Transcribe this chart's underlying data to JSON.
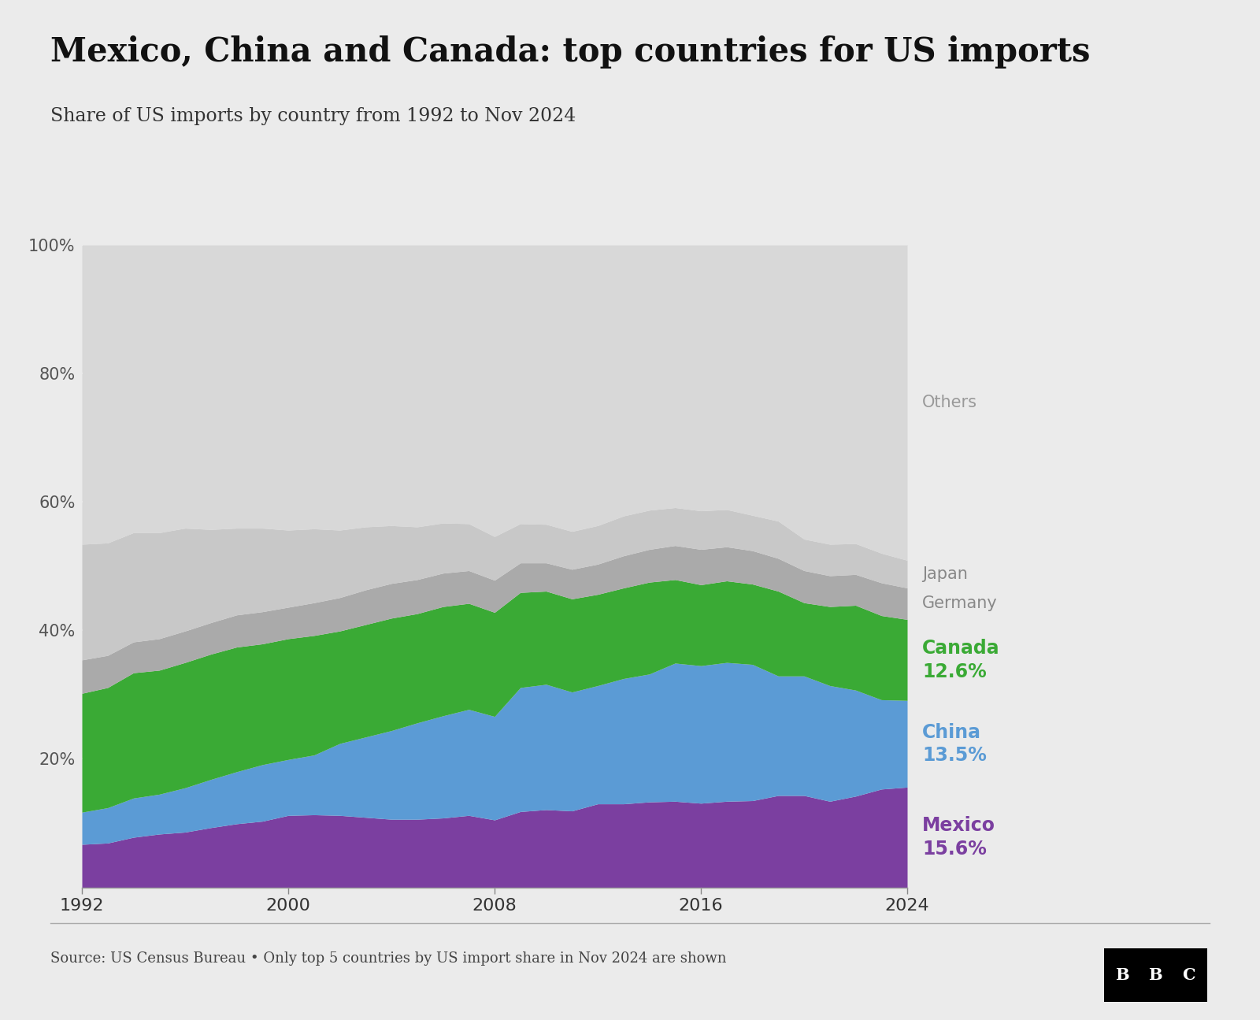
{
  "title": "Mexico, China and Canada: top countries for US imports",
  "subtitle": "Share of US imports by country from 1992 to Nov 2024",
  "source": "Source: US Census Bureau • Only top 5 countries by US import share in Nov 2024 are shown",
  "background_color": "#ebebeb",
  "plot_bg_color": "#ebebeb",
  "title_fontsize": 30,
  "subtitle_fontsize": 17,
  "colors": {
    "mexico": "#7B3FA0",
    "china": "#5B9BD5",
    "canada": "#3AAA35",
    "germany": "#AAAAAA",
    "japan": "#C8C8C8",
    "others": "#D8D8D8"
  },
  "labels": {
    "mexico": "Mexico",
    "mexico_pct": "15.6%",
    "china": "China",
    "china_pct": "13.5%",
    "canada": "Canada",
    "canada_pct": "12.6%",
    "germany": "Germany",
    "japan": "Japan",
    "others": "Others"
  },
  "years": [
    1992,
    1993,
    1994,
    1995,
    1996,
    1997,
    1998,
    1999,
    2000,
    2001,
    2002,
    2003,
    2004,
    2005,
    2006,
    2007,
    2008,
    2009,
    2010,
    2011,
    2012,
    2013,
    2014,
    2015,
    2016,
    2017,
    2018,
    2019,
    2020,
    2021,
    2022,
    2023,
    2024
  ],
  "mexico": [
    6.7,
    6.9,
    7.8,
    8.3,
    8.6,
    9.3,
    9.9,
    10.3,
    11.2,
    11.3,
    11.2,
    10.9,
    10.6,
    10.6,
    10.8,
    11.2,
    10.5,
    11.8,
    12.1,
    11.9,
    13.0,
    13.0,
    13.3,
    13.4,
    13.1,
    13.4,
    13.5,
    14.3,
    14.3,
    13.4,
    14.2,
    15.3,
    15.6
  ],
  "china": [
    5.0,
    5.5,
    6.1,
    6.2,
    6.9,
    7.5,
    8.1,
    8.8,
    8.7,
    9.3,
    11.2,
    12.5,
    13.8,
    15.0,
    15.9,
    16.5,
    16.1,
    19.3,
    19.5,
    18.5,
    18.4,
    19.5,
    19.9,
    21.5,
    21.4,
    21.6,
    21.2,
    18.6,
    18.6,
    18.0,
    16.5,
    13.9,
    13.5
  ],
  "canada": [
    18.5,
    18.7,
    19.5,
    19.3,
    19.5,
    19.5,
    19.4,
    18.8,
    18.8,
    18.6,
    17.5,
    17.5,
    17.5,
    17.0,
    17.0,
    16.5,
    16.2,
    14.8,
    14.5,
    14.5,
    14.2,
    14.1,
    14.3,
    13.0,
    12.6,
    12.7,
    12.5,
    13.2,
    11.4,
    12.3,
    13.2,
    13.1,
    12.6
  ],
  "germany": [
    5.2,
    5.0,
    4.8,
    4.9,
    4.9,
    4.9,
    5.0,
    5.0,
    4.9,
    5.1,
    5.2,
    5.4,
    5.4,
    5.3,
    5.2,
    5.1,
    5.0,
    4.6,
    4.4,
    4.6,
    4.7,
    5.0,
    5.1,
    5.3,
    5.5,
    5.3,
    5.2,
    5.1,
    5.0,
    4.8,
    4.8,
    5.1,
    4.9
  ],
  "japan": [
    18.0,
    17.5,
    17.0,
    16.5,
    16.0,
    14.5,
    13.5,
    13.0,
    12.0,
    11.5,
    10.5,
    9.8,
    9.0,
    8.2,
    7.8,
    7.3,
    6.8,
    6.1,
    6.0,
    5.9,
    6.0,
    6.2,
    6.1,
    5.9,
    6.0,
    5.8,
    5.5,
    5.8,
    4.9,
    4.9,
    4.8,
    4.6,
    4.3
  ]
}
